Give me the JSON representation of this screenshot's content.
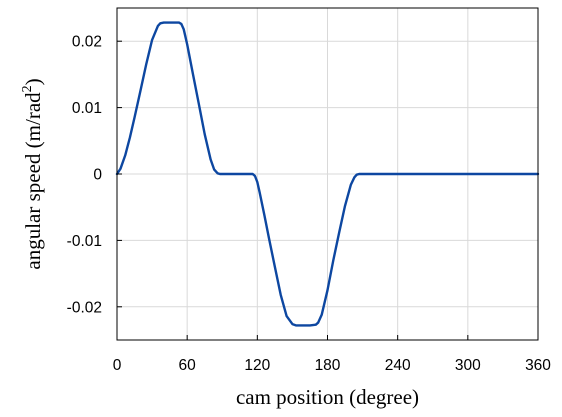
{
  "chart_data": {
    "type": "line",
    "title": "",
    "xlabel": "cam position (degree)",
    "ylabel": "angular speed (m/rad",
    "ylabel_superscript": "2",
    "ylabel_suffix": ")",
    "xlim": [
      0,
      360
    ],
    "ylim": [
      -0.025,
      0.025
    ],
    "xticks": [
      0,
      60,
      120,
      180,
      240,
      300,
      360
    ],
    "xtick_labels": [
      "0",
      "60",
      "120",
      "180",
      "240",
      "300",
      "360"
    ],
    "yticks": [
      0.02,
      0.01,
      0,
      -0.01,
      -0.02
    ],
    "ytick_labels": [
      "0.02",
      "0.01",
      "0",
      "-0.01",
      "-0.02"
    ],
    "grid": true,
    "series": [
      {
        "color": "#0d47a1",
        "x": [
          0,
          3,
          7,
          11,
          15,
          20,
          25,
          30,
          35,
          37,
          40,
          45,
          50,
          53,
          55,
          57,
          60,
          65,
          70,
          75,
          80,
          83,
          86,
          88,
          90,
          100,
          110,
          116,
          118,
          120,
          122,
          126,
          130,
          135,
          140,
          145,
          150,
          153,
          155,
          160,
          165,
          170,
          172,
          175,
          180,
          185,
          190,
          195,
          200,
          203,
          205,
          207,
          210,
          220,
          240,
          270,
          300,
          330,
          360
        ],
        "y": [
          0,
          0.0008,
          0.0028,
          0.0055,
          0.0085,
          0.0125,
          0.0165,
          0.0202,
          0.0223,
          0.0227,
          0.0228,
          0.0228,
          0.0228,
          0.0228,
          0.0226,
          0.0218,
          0.0195,
          0.015,
          0.0105,
          0.006,
          0.0022,
          0.0007,
          0.0001,
          0,
          0,
          0,
          0,
          0,
          -0.0003,
          -0.0012,
          -0.0028,
          -0.0062,
          -0.0097,
          -0.014,
          -0.0182,
          -0.0214,
          -0.0226,
          -0.0228,
          -0.0228,
          -0.0228,
          -0.0228,
          -0.0227,
          -0.0224,
          -0.0212,
          -0.0175,
          -0.013,
          -0.0088,
          -0.0048,
          -0.0016,
          -0.0005,
          -0.0001,
          0,
          0,
          0,
          0,
          0,
          0,
          0,
          0
        ]
      }
    ]
  }
}
